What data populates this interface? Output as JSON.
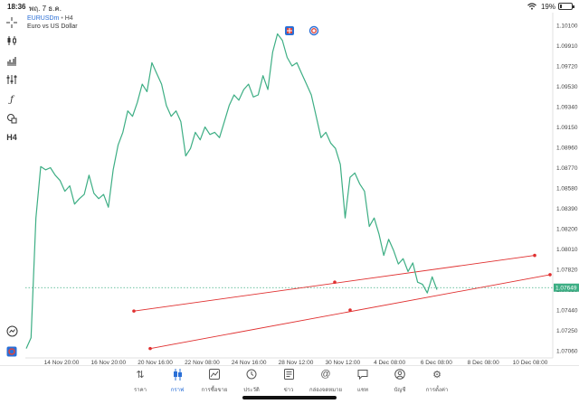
{
  "status": {
    "time": "18:36",
    "date": "พฤ. 7 ธ.ค.",
    "battery": "19%",
    "battery_level": 0.19
  },
  "symbol": {
    "name": "EURUSDm",
    "separator": "•",
    "timeframe": "H4",
    "description": "Euro vs US Dollar"
  },
  "toolbar_icons": [
    "crosshair-icon",
    "chart-type-icon",
    "indicators-icon",
    "settings-sliders-icon",
    "function-icon",
    "shapes-icon",
    "timeframe-icon"
  ],
  "toolbar_timeframe_label": "H4",
  "top_badges": [
    "trade-badge-icon",
    "sync-badge-icon"
  ],
  "current_price": "1.07649",
  "colors": {
    "line": "#3dae84",
    "trendline": "#e03030",
    "price_tag": "#3dae84",
    "accent": "#2a6fd6"
  },
  "chart_data": {
    "type": "line",
    "series": [
      {
        "values": [
          1.0708,
          1.0718,
          1.083,
          1.0878,
          1.0875,
          1.0877,
          1.087,
          1.0865,
          1.0855,
          1.086,
          1.0843,
          1.0848,
          1.0852,
          1.087,
          1.0853,
          1.0848,
          1.0852,
          1.084,
          1.0875,
          1.0898,
          1.091,
          1.093,
          1.0925,
          1.0938,
          1.0955,
          1.0948,
          1.0975,
          1.0965,
          1.0955,
          1.0935,
          1.0925,
          1.093,
          1.092,
          1.0888,
          1.0895,
          1.091,
          1.0903,
          1.0915,
          1.0908,
          1.091,
          1.0905,
          1.092,
          1.0935,
          1.0945,
          1.094,
          1.095,
          1.0955,
          1.0943,
          1.0945,
          1.0963,
          1.095,
          1.0985,
          1.1002,
          1.0996,
          1.098,
          1.0972,
          1.0975,
          1.0965,
          1.0955,
          1.0945,
          1.0925,
          1.0905,
          1.091,
          1.09,
          1.0895,
          1.088,
          1.083,
          1.0868,
          1.0872,
          1.0862,
          1.0855,
          1.0822,
          1.083,
          1.0815,
          1.0795,
          1.081,
          1.08,
          1.0787,
          1.0792,
          1.078,
          1.0788,
          1.077,
          1.0768,
          1.076,
          1.0775,
          1.0763
        ]
      }
    ],
    "trendlines": [
      {
        "from": {
          "x": "19 Nov 12:00",
          "y": 1.0743
        },
        "mid": {
          "x": "1 Dec 04:00",
          "y": 1.077
        },
        "to": {
          "x": "11 Dec 04:00",
          "y": 1.0795
        }
      },
      {
        "from": {
          "x": "20 Nov 08:00",
          "y": 1.0708
        },
        "mid": {
          "x": "1 Dec 08:00",
          "y": 1.0744
        },
        "to": {
          "x": "11 Dec 20:00",
          "y": 1.0777
        }
      }
    ],
    "current_price": 1.07649,
    "xlabels": [
      "14 Nov 20:00",
      "16 Nov 20:00",
      "20 Nov 16:00",
      "22 Nov 08:00",
      "24 Nov 16:00",
      "28 Nov 12:00",
      "30 Nov 12:00",
      "4 Dec 08:00",
      "6 Dec 08:00",
      "8 Dec 08:00",
      "10 Dec 08:00"
    ],
    "ylabels": [
      "1.10100",
      "1.09910",
      "1.09720",
      "1.09530",
      "1.09340",
      "1.09150",
      "1.08960",
      "1.08770",
      "1.08580",
      "1.08390",
      "1.08200",
      "1.08010",
      "1.07820",
      "1.07630",
      "1.07440",
      "1.07250",
      "1.07060"
    ],
    "ylim": [
      1.0706,
      1.101
    ]
  },
  "nav": {
    "items": [
      {
        "label": "ราคา",
        "icon": "quotes-icon"
      },
      {
        "label": "กราฟ",
        "icon": "chart-candles-icon"
      },
      {
        "label": "การซื้อขาย",
        "icon": "trade-icon"
      },
      {
        "label": "ประวัติ",
        "icon": "history-icon"
      },
      {
        "label": "ข่าว",
        "icon": "news-icon"
      },
      {
        "label": "กล่องจดหมาย",
        "icon": "mailbox-icon"
      },
      {
        "label": "แชท",
        "icon": "chat-icon"
      },
      {
        "label": "บัญชี",
        "icon": "account-icon"
      },
      {
        "label": "การตั้งค่า",
        "icon": "settings-icon"
      }
    ],
    "active_index": 1
  }
}
